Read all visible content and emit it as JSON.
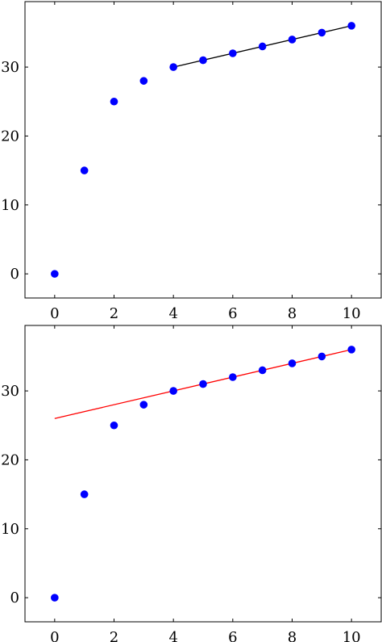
{
  "chart_data": [
    {
      "type": "scatter",
      "xlim": [
        -1,
        11
      ],
      "ylim": [
        -3.5,
        39.5
      ],
      "x_ticks": [
        0,
        2,
        4,
        6,
        8,
        10
      ],
      "y_ticks": [
        0,
        10,
        20,
        30
      ],
      "x_tick_labels": [
        "0",
        "2",
        "4",
        "6",
        "8",
        "10"
      ],
      "y_tick_labels": [
        "0",
        "10",
        "20",
        "30"
      ],
      "grid": false,
      "series": [
        {
          "kind": "scatter",
          "color": "#0000ff",
          "x": [
            0,
            1,
            2,
            3,
            4,
            5,
            6,
            7,
            8,
            9,
            10
          ],
          "y": [
            0,
            15,
            25,
            28,
            30,
            31,
            32,
            33,
            34,
            35,
            36
          ]
        },
        {
          "kind": "line",
          "color": "#000000",
          "x": [
            4,
            10
          ],
          "y": [
            30,
            36
          ]
        }
      ]
    },
    {
      "type": "scatter",
      "xlim": [
        -1,
        11
      ],
      "ylim": [
        -3.5,
        39.5
      ],
      "x_ticks": [
        0,
        2,
        4,
        6,
        8,
        10
      ],
      "y_ticks": [
        0,
        10,
        20,
        30
      ],
      "x_tick_labels": [
        "0",
        "2",
        "4",
        "6",
        "8",
        "10"
      ],
      "y_tick_labels": [
        "0",
        "10",
        "20",
        "30"
      ],
      "grid": false,
      "series": [
        {
          "kind": "scatter",
          "color": "#0000ff",
          "x": [
            0,
            1,
            2,
            3,
            4,
            5,
            6,
            7,
            8,
            9,
            10
          ],
          "y": [
            0,
            15,
            25,
            28,
            30,
            31,
            32,
            33,
            34,
            35,
            36
          ]
        },
        {
          "kind": "line",
          "color": "#ff0000",
          "x": [
            0,
            10
          ],
          "y": [
            26,
            36
          ]
        }
      ]
    }
  ]
}
